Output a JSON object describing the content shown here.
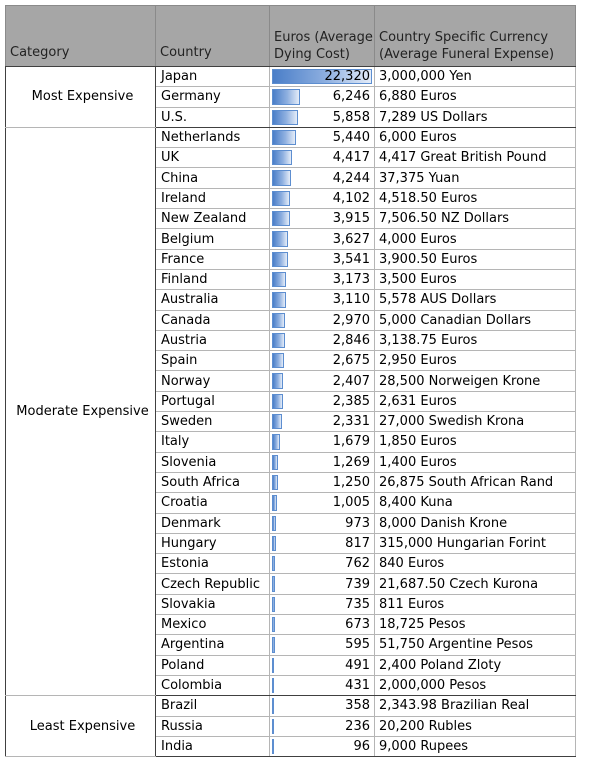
{
  "headers": {
    "category": "Category",
    "country": "Country",
    "euros_line1": "Euros (Average",
    "euros_line2": "Dying Cost)",
    "currency_line1": "Country Specific Currency",
    "currency_line2": "(Average Funeral Expense)"
  },
  "chart_data": {
    "type": "table",
    "max_value": 22320,
    "bar_color": "#4a7ec8",
    "groups": [
      {
        "category": "Most Expensive",
        "rows": [
          {
            "country": "Japan",
            "euros": 22320,
            "euros_label": "22,320",
            "local": "3,000,000 Yen"
          },
          {
            "country": "Germany",
            "euros": 6246,
            "euros_label": "6,246",
            "local": "6,880 Euros"
          },
          {
            "country": "U.S.",
            "euros": 5858,
            "euros_label": "5,858",
            "local": "7,289 US Dollars"
          }
        ]
      },
      {
        "category": "Moderate Expensive",
        "rows": [
          {
            "country": "Netherlands",
            "euros": 5440,
            "euros_label": "5,440",
            "local": "6,000 Euros"
          },
          {
            "country": "UK",
            "euros": 4417,
            "euros_label": "4,417",
            "local": "4,417 Great British Pound"
          },
          {
            "country": "China",
            "euros": 4244,
            "euros_label": "4,244",
            "local": "37,375 Yuan"
          },
          {
            "country": "Ireland",
            "euros": 4102,
            "euros_label": "4,102",
            "local": "4,518.50 Euros"
          },
          {
            "country": "New Zealand",
            "euros": 3915,
            "euros_label": "3,915",
            "local": "7,506.50 NZ Dollars"
          },
          {
            "country": "Belgium",
            "euros": 3627,
            "euros_label": "3,627",
            "local": "4,000 Euros"
          },
          {
            "country": "France",
            "euros": 3541,
            "euros_label": "3,541",
            "local": "3,900.50 Euros"
          },
          {
            "country": "Finland",
            "euros": 3173,
            "euros_label": "3,173",
            "local": "3,500 Euros"
          },
          {
            "country": "Australia",
            "euros": 3110,
            "euros_label": "3,110",
            "local": "5,578 AUS Dollars"
          },
          {
            "country": "Canada",
            "euros": 2970,
            "euros_label": "2,970",
            "local": "5,000 Canadian Dollars"
          },
          {
            "country": "Austria",
            "euros": 2846,
            "euros_label": "2,846",
            "local": "3,138.75 Euros"
          },
          {
            "country": "Spain",
            "euros": 2675,
            "euros_label": "2,675",
            "local": "2,950 Euros"
          },
          {
            "country": "Norway",
            "euros": 2407,
            "euros_label": "2,407",
            "local": "28,500 Norweigen Krone"
          },
          {
            "country": "Portugal",
            "euros": 2385,
            "euros_label": "2,385",
            "local": "2,631 Euros"
          },
          {
            "country": "Sweden",
            "euros": 2331,
            "euros_label": "2,331",
            "local": "27,000 Swedish Krona"
          },
          {
            "country": "Italy",
            "euros": 1679,
            "euros_label": "1,679",
            "local": "1,850 Euros"
          },
          {
            "country": "Slovenia",
            "euros": 1269,
            "euros_label": "1,269",
            "local": "1,400 Euros"
          },
          {
            "country": "South Africa",
            "euros": 1250,
            "euros_label": "1,250",
            "local": "26,875 South African Rand"
          },
          {
            "country": "Croatia",
            "euros": 1005,
            "euros_label": "1,005",
            "local": "8,400 Kuna"
          },
          {
            "country": "Denmark",
            "euros": 973,
            "euros_label": "973",
            "local": "8,000 Danish Krone"
          },
          {
            "country": "Hungary",
            "euros": 817,
            "euros_label": "817",
            "local": "315,000 Hungarian Forint"
          },
          {
            "country": "Estonia",
            "euros": 762,
            "euros_label": "762",
            "local": "840 Euros"
          },
          {
            "country": "Czech Republic",
            "euros": 739,
            "euros_label": "739",
            "local": "21,687.50 Czech Kurona"
          },
          {
            "country": "Slovakia",
            "euros": 735,
            "euros_label": "735",
            "local": "811 Euros"
          },
          {
            "country": "Mexico",
            "euros": 673,
            "euros_label": "673",
            "local": "18,725 Pesos"
          },
          {
            "country": "Argentina",
            "euros": 595,
            "euros_label": "595",
            "local": "51,750 Argentine Pesos"
          },
          {
            "country": "Poland",
            "euros": 491,
            "euros_label": "491",
            "local": "2,400 Poland Zloty"
          },
          {
            "country": "Colombia",
            "euros": 431,
            "euros_label": "431",
            "local": "2,000,000 Pesos"
          }
        ]
      },
      {
        "category": "Least Expensive",
        "rows": [
          {
            "country": "Brazil",
            "euros": 358,
            "euros_label": "358",
            "local": "2,343.98 Brazilian Real"
          },
          {
            "country": "Russia",
            "euros": 236,
            "euros_label": "236",
            "local": "20,200 Rubles"
          },
          {
            "country": "India",
            "euros": 96,
            "euros_label": "96",
            "local": "9,000 Rupees"
          }
        ]
      }
    ]
  }
}
